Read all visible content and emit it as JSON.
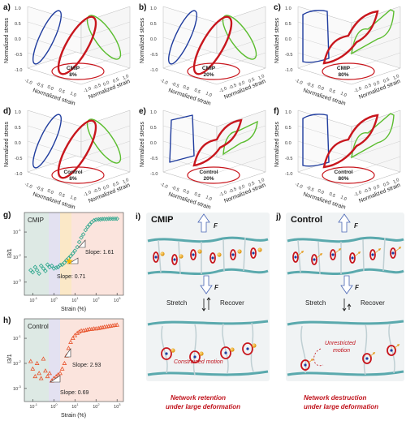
{
  "panels_3d": [
    {
      "label": "a)",
      "sample": "CMIP",
      "strain": "8%",
      "type": "small"
    },
    {
      "label": "b)",
      "sample": "CMIP",
      "strain": "20%",
      "type": "small"
    },
    {
      "label": "c)",
      "sample": "CMIP",
      "strain": "80%",
      "type": "large"
    },
    {
      "label": "d)",
      "sample": "Control",
      "strain": "8%",
      "type": "small"
    },
    {
      "label": "e)",
      "sample": "Control",
      "strain": "20%",
      "type": "mid"
    },
    {
      "label": "f)",
      "sample": "Control",
      "strain": "80%",
      "type": "large"
    }
  ],
  "axes_3d": {
    "z_label": "Normalized stress",
    "x_label": "Normalized strain",
    "y_label": "Normalized strain rate",
    "z_ticks": [
      "1.0",
      "0.5",
      "0.0",
      "-0.5",
      "-1.0"
    ],
    "xy_ticks": [
      "-1.0",
      "-0.5",
      "0.0",
      "0.5",
      "1.0"
    ]
  },
  "colors": {
    "red": "#c8161d",
    "green": "#5bbd2f",
    "blue": "#1f3c9e",
    "teal": "#2aa58c",
    "orange_pt": "#e8542d",
    "star": "#f5b800"
  },
  "plot_g": {
    "label": "g)",
    "legend": "CMIP",
    "ylabel": "I3/1",
    "xlabel": "Strain (%)",
    "slope_high": "Slope: 1.61",
    "slope_low": "Slope: 0.71",
    "xticks": [
      "10-1",
      "100",
      "101",
      "102",
      "103"
    ],
    "yticks": [
      "10-1",
      "10-2",
      "10-3"
    ]
  },
  "plot_h": {
    "label": "h)",
    "legend": "Control",
    "ylabel": "I3/1",
    "xlabel": "Strain (%)",
    "slope_high": "Slope: 2.93",
    "slope_low": "Slope: 0.69",
    "xticks": [
      "10-1",
      "100",
      "101",
      "102",
      "103"
    ],
    "yticks": [
      "10-1",
      "10-2",
      "10-3"
    ]
  },
  "chart_data": [
    {
      "type": "scatter",
      "legend": "CMIP",
      "xlabel": "Strain (%)",
      "ylabel": "I3/1",
      "xscale": "log",
      "yscale": "log",
      "xlim": [
        0.04,
        2000
      ],
      "ylim": [
        0.0003,
        0.6
      ],
      "x": [
        0.08,
        0.1,
        0.13,
        0.16,
        0.2,
        0.25,
        0.32,
        0.4,
        0.5,
        0.63,
        0.8,
        1.0,
        1.3,
        1.6,
        2.0,
        2.5,
        3.2,
        4.0,
        5.0,
        6.3,
        8,
        10,
        13,
        16,
        20,
        25,
        32,
        40,
        50,
        63,
        80,
        100,
        130,
        160,
        200,
        250,
        320,
        400,
        500,
        630,
        800,
        1000
      ],
      "y": [
        0.003,
        0.0025,
        0.004,
        0.003,
        0.0022,
        0.0045,
        0.0035,
        0.0028,
        0.005,
        0.004,
        0.0045,
        0.0035,
        0.0038,
        0.004,
        0.0048,
        0.005,
        0.006,
        0.0075,
        0.009,
        0.011,
        0.014,
        0.018,
        0.025,
        0.04,
        0.06,
        0.08,
        0.12,
        0.16,
        0.2,
        0.25,
        0.29,
        0.31,
        0.32,
        0.32,
        0.33,
        0.33,
        0.33,
        0.34,
        0.34,
        0.34,
        0.34,
        0.34
      ]
    },
    {
      "type": "scatter",
      "legend": "Control",
      "xlabel": "Strain (%)",
      "ylabel": "I3/1",
      "xscale": "log",
      "yscale": "log",
      "xlim": [
        0.04,
        2000
      ],
      "ylim": [
        0.0003,
        0.6
      ],
      "x": [
        0.08,
        0.1,
        0.13,
        0.16,
        0.2,
        0.25,
        0.32,
        0.4,
        0.5,
        0.63,
        0.8,
        1.0,
        1.3,
        1.6,
        2.0,
        2.5,
        3.2,
        4.0,
        5.0,
        6.3,
        8,
        10,
        13,
        16,
        20,
        25,
        32,
        40,
        50,
        63,
        80,
        100,
        130,
        160,
        200,
        250,
        320,
        400,
        500,
        630,
        800,
        1000
      ],
      "y": [
        0.012,
        0.006,
        0.003,
        0.01,
        0.004,
        0.0025,
        0.015,
        0.005,
        0.003,
        0.004,
        0.002,
        0.0025,
        0.003,
        0.0035,
        0.004,
        0.006,
        0.01,
        0.02,
        0.04,
        0.07,
        0.1,
        0.13,
        0.16,
        0.18,
        0.2,
        0.2,
        0.21,
        0.22,
        0.23,
        0.23,
        0.24,
        0.24,
        0.25,
        0.26,
        0.27,
        0.28,
        0.29,
        0.3,
        0.31,
        0.32,
        0.33,
        0.34
      ]
    }
  ],
  "schematic_i": {
    "label": "i)",
    "title": "CMIP",
    "force": "F",
    "stretch": "Stretch",
    "recover": "Recover",
    "note": "Constrained motion",
    "caption_1": "Network retention",
    "caption_2": "under large deformation"
  },
  "schematic_j": {
    "label": "j)",
    "title": "Control",
    "force": "F",
    "stretch": "Stretch",
    "recover": "Recover",
    "note_1": "Unrestricted",
    "note_2": "motion",
    "caption_1": "Network destruction",
    "caption_2": "under large deformation"
  }
}
